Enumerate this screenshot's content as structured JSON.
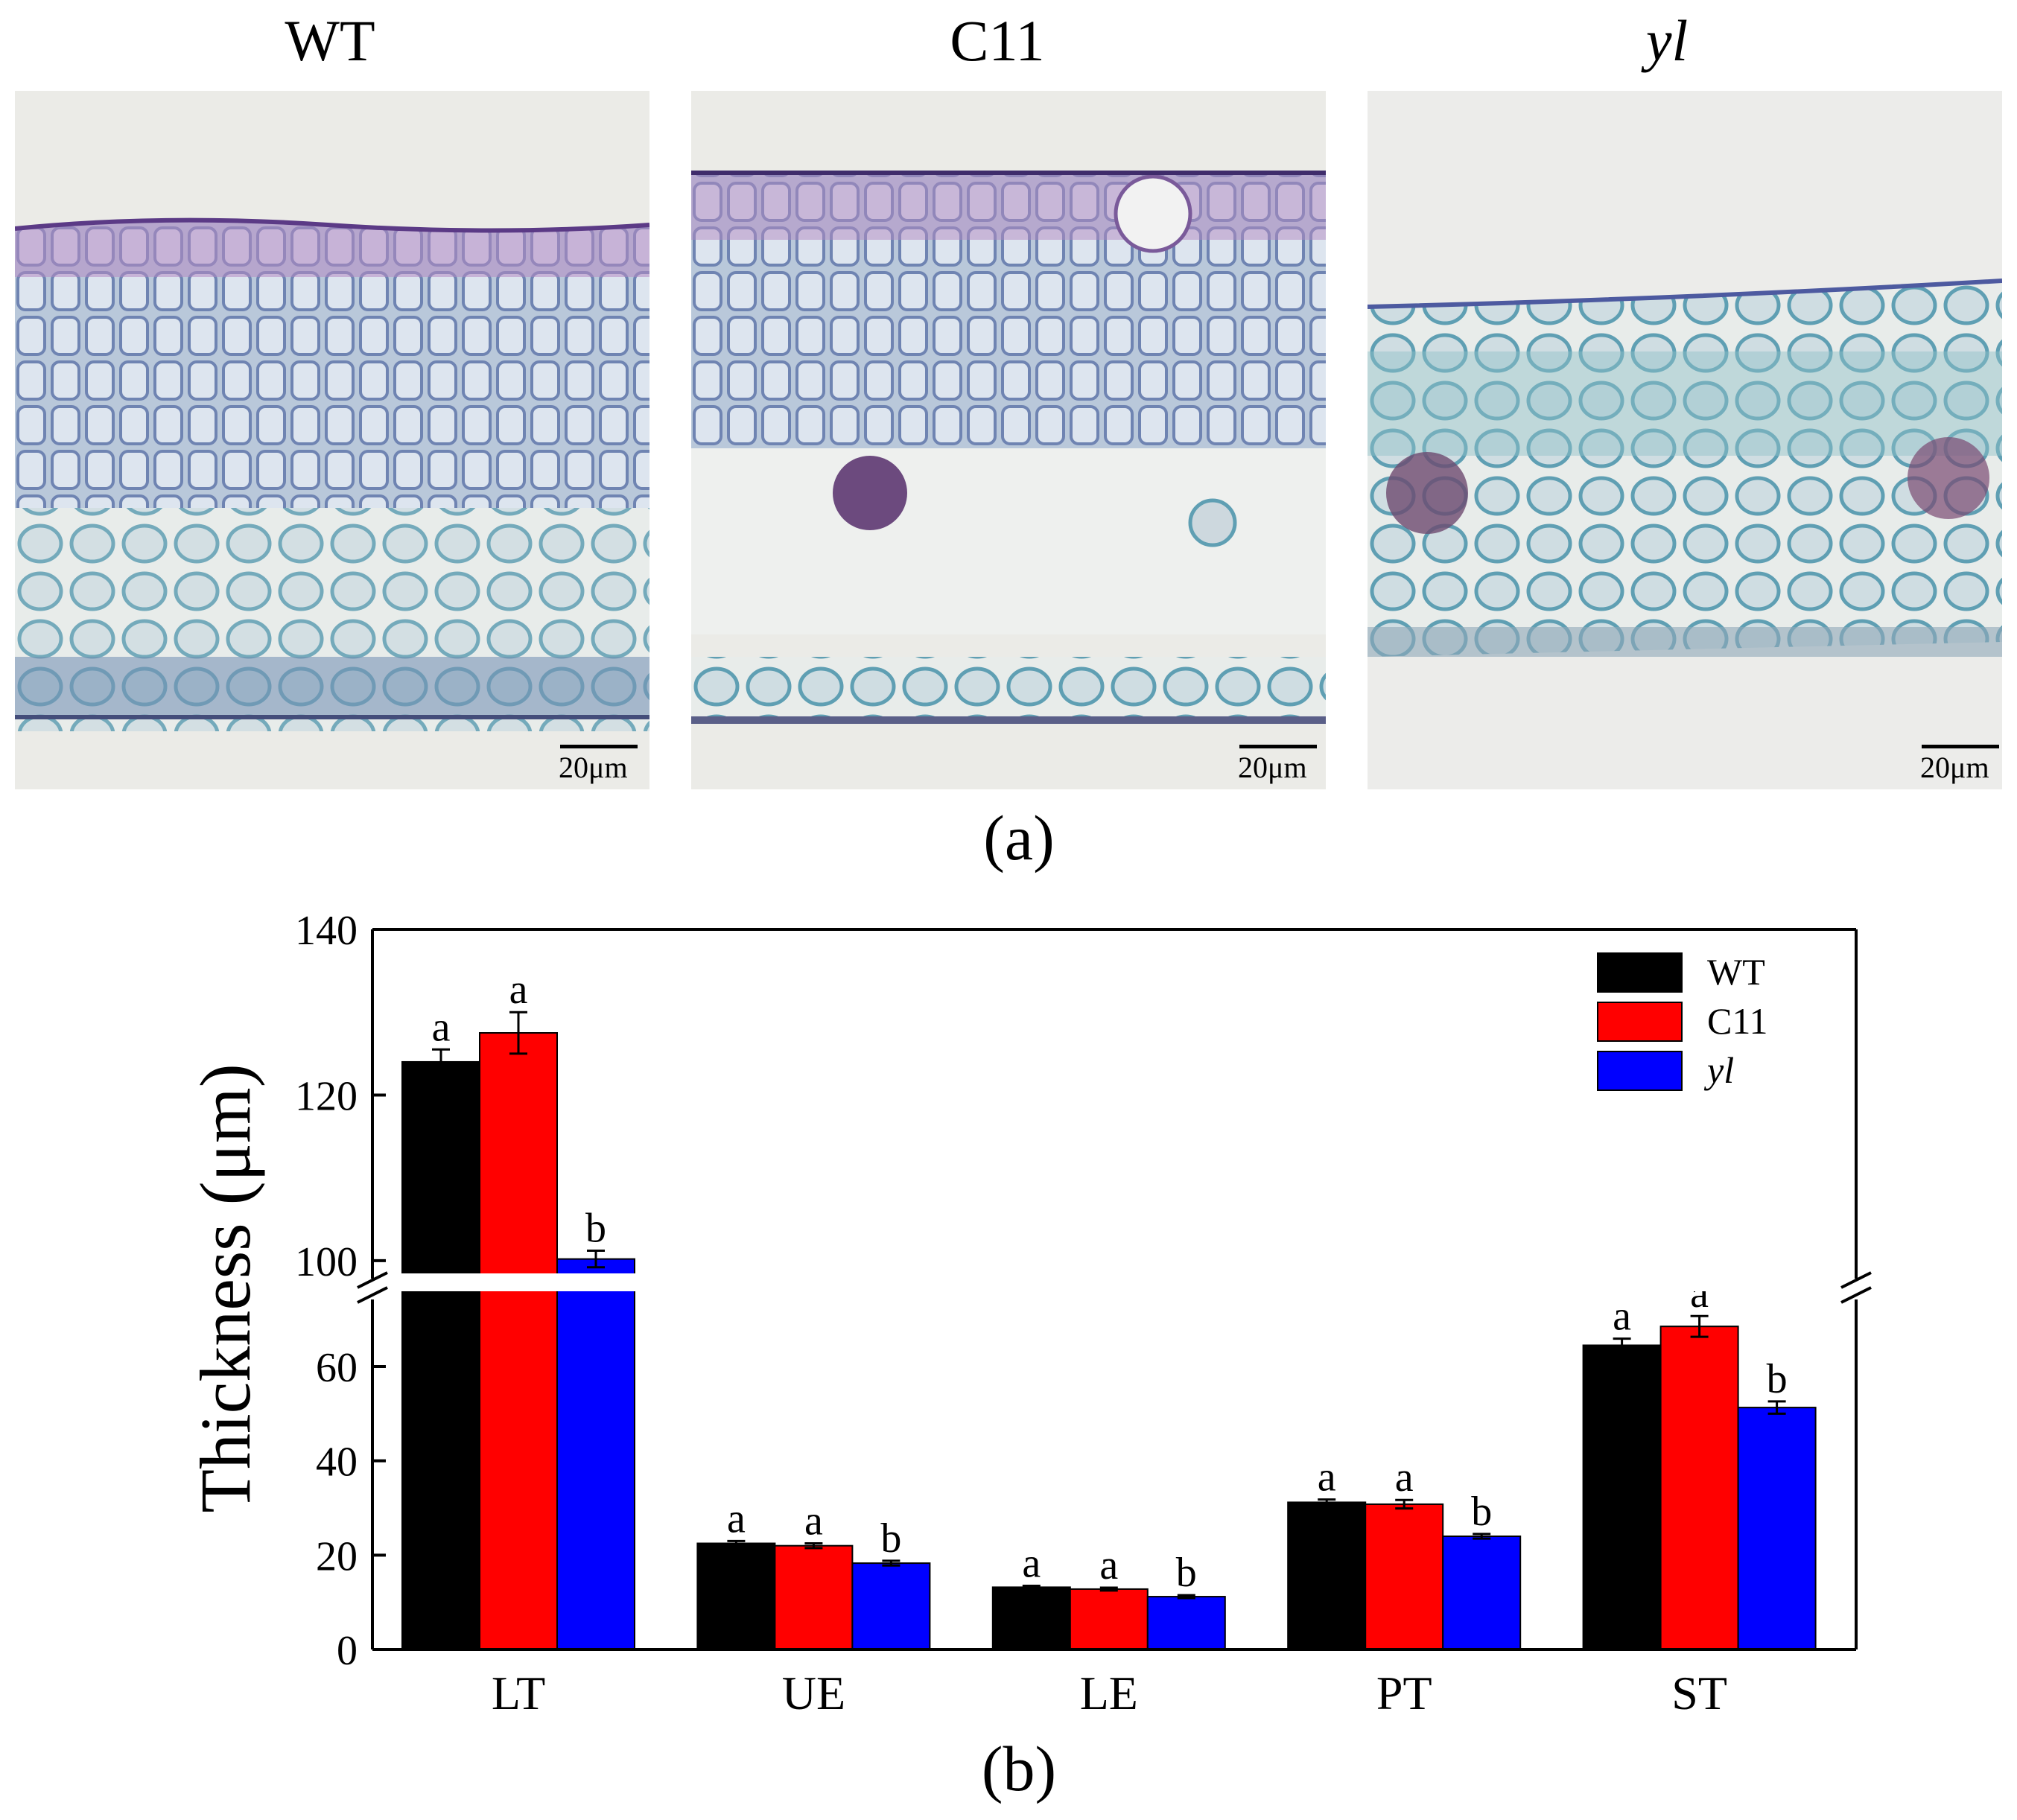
{
  "panel_a": {
    "label": "(a)",
    "images": [
      {
        "title": "WT",
        "italic": false,
        "scale_bar": "20μm"
      },
      {
        "title": "C11",
        "italic": false,
        "scale_bar": "20μm"
      },
      {
        "title": "yl",
        "italic": true,
        "scale_bar": "20μm"
      }
    ]
  },
  "panel_b": {
    "label": "(b)"
  },
  "chart_data": {
    "type": "bar",
    "categories": [
      "LT",
      "UE",
      "LE",
      "PT",
      "ST"
    ],
    "ylabel": "Thickness (μm)",
    "xlabel": "",
    "broken_axis": {
      "lower_range": [
        0,
        75
      ],
      "upper_range": [
        99,
        140
      ]
    },
    "y_ticks_lower": [
      0,
      20,
      40,
      60
    ],
    "y_ticks_upper": [
      100,
      120,
      140
    ],
    "grid": false,
    "legend_position": "top-right",
    "series": [
      {
        "name": "WT",
        "color": "#000000",
        "italic": false,
        "values": [
          124.0,
          22.5,
          13.2,
          31.2,
          64.5
        ],
        "errors": [
          1.5,
          0.5,
          0.3,
          0.6,
          1.4
        ],
        "letters": [
          "a",
          "a",
          "a",
          "a",
          "a"
        ]
      },
      {
        "name": "C11",
        "color": "#ff0000",
        "italic": false,
        "values": [
          127.5,
          22.0,
          12.8,
          30.8,
          68.5
        ],
        "errors": [
          2.5,
          0.5,
          0.3,
          0.9,
          2.2
        ],
        "letters": [
          "a",
          "a",
          "a",
          "a",
          "a"
        ]
      },
      {
        "name": "yl",
        "color": "#0000ff",
        "italic": true,
        "values": [
          100.2,
          18.3,
          11.2,
          24.0,
          51.3
        ],
        "errors": [
          1.0,
          0.5,
          0.3,
          0.5,
          1.3
        ],
        "letters": [
          "b",
          "b",
          "b",
          "b",
          "b"
        ]
      }
    ]
  }
}
